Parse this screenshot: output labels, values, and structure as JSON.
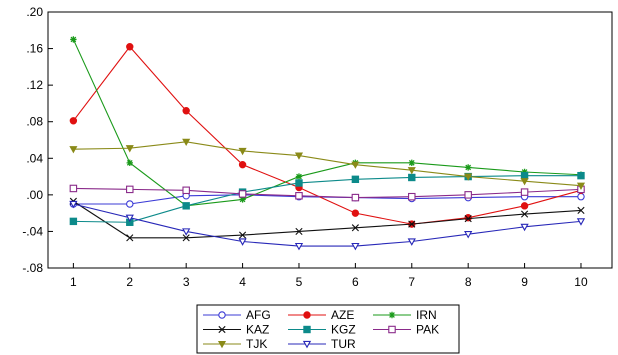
{
  "chart_data": {
    "type": "line",
    "x": [
      1,
      2,
      3,
      4,
      5,
      6,
      7,
      8,
      9,
      10
    ],
    "ylim": [
      -0.08,
      0.2
    ],
    "yticks": [
      ".20",
      ".16",
      ".12",
      ".08",
      ".04",
      ".00",
      "-.04",
      "-.08"
    ],
    "ytick_values": [
      0.2,
      0.16,
      0.12,
      0.08,
      0.04,
      0.0,
      -0.04,
      -0.08
    ],
    "xticks": [
      "1",
      "2",
      "3",
      "4",
      "5",
      "6",
      "7",
      "8",
      "9",
      "10"
    ],
    "legend_position": "bottom",
    "grid": false,
    "series": [
      {
        "name": "AFG",
        "color": "#3b3bd6",
        "marker": "circle",
        "values": [
          -0.01,
          -0.01,
          -0.001,
          0.0,
          -0.002,
          -0.003,
          -0.004,
          -0.003,
          -0.002,
          -0.002
        ]
      },
      {
        "name": "AZE",
        "color": "#e01010",
        "marker": "dot",
        "values": [
          0.081,
          0.162,
          0.092,
          0.033,
          0.008,
          -0.02,
          -0.032,
          -0.025,
          -0.012,
          0.005
        ]
      },
      {
        "name": "IRN",
        "color": "#1a9a1a",
        "marker": "star",
        "values": [
          0.17,
          0.035,
          -0.012,
          -0.005,
          0.02,
          0.035,
          0.035,
          0.03,
          0.025,
          0.022
        ]
      },
      {
        "name": "KAZ",
        "color": "#111111",
        "marker": "x",
        "values": [
          -0.007,
          -0.047,
          -0.047,
          -0.044,
          -0.04,
          -0.036,
          -0.032,
          -0.026,
          -0.021,
          -0.017
        ]
      },
      {
        "name": "KGZ",
        "color": "#0c8a8a",
        "marker": "square",
        "values": [
          -0.029,
          -0.03,
          -0.012,
          0.003,
          0.013,
          0.017,
          0.019,
          0.02,
          0.021,
          0.021
        ]
      },
      {
        "name": "PAK",
        "color": "#8a2a8a",
        "marker": "square-open",
        "values": [
          0.007,
          0.006,
          0.005,
          0.001,
          -0.001,
          -0.003,
          -0.002,
          0.0,
          0.003,
          0.006
        ]
      },
      {
        "name": "TJK",
        "color": "#8a8a18",
        "marker": "tri-down",
        "values": [
          0.05,
          0.051,
          0.058,
          0.048,
          0.043,
          0.033,
          0.027,
          0.02,
          0.015,
          0.01
        ]
      },
      {
        "name": "TUR",
        "color": "#2828b8",
        "marker": "tri-down-open",
        "values": [
          -0.01,
          -0.025,
          -0.04,
          -0.051,
          -0.056,
          -0.056,
          -0.051,
          -0.043,
          -0.035,
          -0.029
        ]
      }
    ]
  }
}
